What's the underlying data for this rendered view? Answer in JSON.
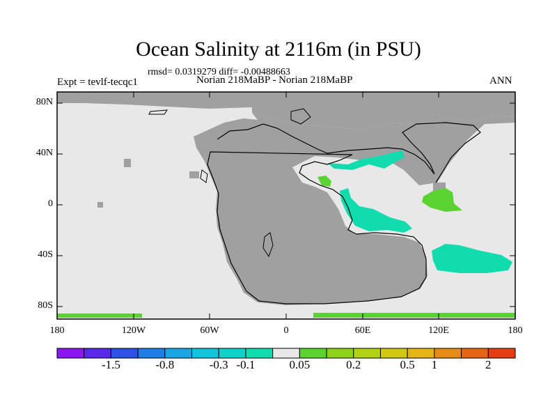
{
  "title": "Ocean Salinity at 2116m (in PSU)",
  "stats": "rmsd= 0.0319279 diff= -0.00488663",
  "left_label": "Expt = tevlf-tecqc1",
  "center_label": "Norian 218MaBP - Norian 218MaBP",
  "right_label": "ANN",
  "y_ticks": [
    "80N",
    "40N",
    "0",
    "40S",
    "80S"
  ],
  "x_ticks": [
    "180",
    "120W",
    "60W",
    "0",
    "60E",
    "120E",
    "180"
  ],
  "colorbar": {
    "colors": [
      "#8a16f0",
      "#5a28e8",
      "#2d50e6",
      "#1f7ee6",
      "#1aa6e4",
      "#12c4dc",
      "#10d2c8",
      "#10dcb0",
      "#e8e8e8",
      "#5ad232",
      "#8cd21a",
      "#b4d214",
      "#d2c814",
      "#e6b414",
      "#e68c14",
      "#e66414",
      "#e63c14"
    ],
    "labels": [
      "-1.5",
      "-0.8",
      "-0.3",
      "-0.1",
      "0.05",
      "0.2",
      "0.5",
      "1",
      "2"
    ]
  },
  "colors": {
    "land": "#a0a0a0",
    "ocean_neutral": "#e8e8e8",
    "positive_anomaly": "#5ad232",
    "negative_anomaly": "#10dcb0"
  }
}
